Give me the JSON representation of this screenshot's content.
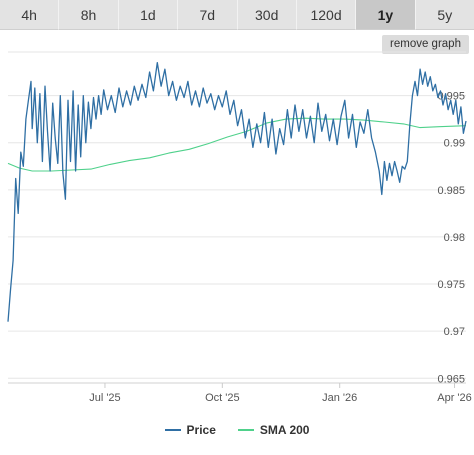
{
  "tabs": [
    {
      "label": "4h",
      "active": false
    },
    {
      "label": "8h",
      "active": false
    },
    {
      "label": "1d",
      "active": false
    },
    {
      "label": "7d",
      "active": false
    },
    {
      "label": "30d",
      "active": false
    },
    {
      "label": "120d",
      "active": false
    },
    {
      "label": "1y",
      "active": true
    },
    {
      "label": "5y",
      "active": false
    }
  ],
  "remove_graph_label": "remove graph",
  "legend": [
    {
      "label": "Price",
      "color": "#2f6fa4"
    },
    {
      "label": "SMA 200",
      "color": "#4fd18b"
    }
  ],
  "chart_data": {
    "type": "line",
    "x_tick_labels": [
      "Jul '25",
      "Oct '25",
      "Jan '26",
      "Apr '26"
    ],
    "x_tick_dates": [
      "2025-07-01",
      "2025-10-01",
      "2026-01-01",
      "2026-04-01"
    ],
    "x_range": [
      "2025-04-16",
      "2026-04-10"
    ],
    "y_ticks": [
      0.965,
      0.97,
      0.975,
      0.98,
      0.985,
      0.99,
      0.995
    ],
    "y_tick_labels": [
      "0.965",
      "0.97",
      "0.975",
      "0.98",
      "0.985",
      "0.99",
      "0.995"
    ],
    "ylim": [
      0.9645,
      0.9992
    ],
    "grid": "horizontal",
    "legend_position": "bottom-center",
    "series": [
      {
        "name": "Price",
        "color": "#2f6fa4",
        "points": [
          [
            "2025-04-16",
            0.971
          ],
          [
            "2025-04-18",
            0.9745
          ],
          [
            "2025-04-20",
            0.9775
          ],
          [
            "2025-04-22",
            0.9862
          ],
          [
            "2025-04-24",
            0.9825
          ],
          [
            "2025-04-26",
            0.989
          ],
          [
            "2025-04-28",
            0.9875
          ],
          [
            "2025-04-30",
            0.9925
          ],
          [
            "2025-05-02",
            0.9945
          ],
          [
            "2025-05-04",
            0.9965
          ],
          [
            "2025-05-05",
            0.9915
          ],
          [
            "2025-05-07",
            0.9958
          ],
          [
            "2025-05-09",
            0.99
          ],
          [
            "2025-05-11",
            0.9952
          ],
          [
            "2025-05-13",
            0.988
          ],
          [
            "2025-05-15",
            0.996
          ],
          [
            "2025-05-17",
            0.9912
          ],
          [
            "2025-05-19",
            0.987
          ],
          [
            "2025-05-21",
            0.9942
          ],
          [
            "2025-05-23",
            0.9905
          ],
          [
            "2025-05-25",
            0.9878
          ],
          [
            "2025-05-27",
            0.995
          ],
          [
            "2025-05-29",
            0.9868
          ],
          [
            "2025-05-31",
            0.984
          ],
          [
            "2025-06-02",
            0.9945
          ],
          [
            "2025-06-04",
            0.988
          ],
          [
            "2025-06-06",
            0.9955
          ],
          [
            "2025-06-08",
            0.987
          ],
          [
            "2025-06-10",
            0.994
          ],
          [
            "2025-06-12",
            0.9885
          ],
          [
            "2025-06-14",
            0.995
          ],
          [
            "2025-06-16",
            0.99
          ],
          [
            "2025-06-18",
            0.9943
          ],
          [
            "2025-06-20",
            0.9915
          ],
          [
            "2025-06-22",
            0.9948
          ],
          [
            "2025-06-24",
            0.9925
          ],
          [
            "2025-06-26",
            0.995
          ],
          [
            "2025-06-28",
            0.993
          ],
          [
            "2025-06-30",
            0.9956
          ],
          [
            "2025-07-03",
            0.9935
          ],
          [
            "2025-07-06",
            0.995
          ],
          [
            "2025-07-09",
            0.9932
          ],
          [
            "2025-07-12",
            0.9958
          ],
          [
            "2025-07-15",
            0.9938
          ],
          [
            "2025-07-18",
            0.9955
          ],
          [
            "2025-07-21",
            0.994
          ],
          [
            "2025-07-24",
            0.996
          ],
          [
            "2025-07-27",
            0.9945
          ],
          [
            "2025-07-30",
            0.9962
          ],
          [
            "2025-08-02",
            0.9948
          ],
          [
            "2025-08-05",
            0.9975
          ],
          [
            "2025-08-08",
            0.9955
          ],
          [
            "2025-08-11",
            0.9985
          ],
          [
            "2025-08-14",
            0.996
          ],
          [
            "2025-08-17",
            0.9978
          ],
          [
            "2025-08-20",
            0.995
          ],
          [
            "2025-08-23",
            0.9965
          ],
          [
            "2025-08-26",
            0.9945
          ],
          [
            "2025-08-29",
            0.996
          ],
          [
            "2025-09-01",
            0.9948
          ],
          [
            "2025-09-04",
            0.9965
          ],
          [
            "2025-09-07",
            0.994
          ],
          [
            "2025-09-10",
            0.9955
          ],
          [
            "2025-09-13",
            0.9938
          ],
          [
            "2025-09-16",
            0.9958
          ],
          [
            "2025-09-19",
            0.9942
          ],
          [
            "2025-09-22",
            0.9952
          ],
          [
            "2025-09-25",
            0.9935
          ],
          [
            "2025-09-28",
            0.995
          ],
          [
            "2025-10-01",
            0.9938
          ],
          [
            "2025-10-04",
            0.9955
          ],
          [
            "2025-10-07",
            0.993
          ],
          [
            "2025-10-10",
            0.9945
          ],
          [
            "2025-10-13",
            0.9918
          ],
          [
            "2025-10-16",
            0.9935
          ],
          [
            "2025-10-19",
            0.9905
          ],
          [
            "2025-10-22",
            0.9925
          ],
          [
            "2025-10-25",
            0.9895
          ],
          [
            "2025-10-28",
            0.992
          ],
          [
            "2025-10-31",
            0.99
          ],
          [
            "2025-11-03",
            0.9932
          ],
          [
            "2025-11-06",
            0.9895
          ],
          [
            "2025-11-09",
            0.9925
          ],
          [
            "2025-11-12",
            0.9888
          ],
          [
            "2025-11-15",
            0.9915
          ],
          [
            "2025-11-18",
            0.9898
          ],
          [
            "2025-11-21",
            0.9935
          ],
          [
            "2025-11-24",
            0.9905
          ],
          [
            "2025-11-27",
            0.994
          ],
          [
            "2025-11-30",
            0.9912
          ],
          [
            "2025-12-03",
            0.9935
          ],
          [
            "2025-12-06",
            0.9905
          ],
          [
            "2025-12-09",
            0.9928
          ],
          [
            "2025-12-12",
            0.99
          ],
          [
            "2025-12-15",
            0.9942
          ],
          [
            "2025-12-18",
            0.9912
          ],
          [
            "2025-12-21",
            0.993
          ],
          [
            "2025-12-24",
            0.9902
          ],
          [
            "2025-12-27",
            0.9925
          ],
          [
            "2025-12-30",
            0.9898
          ],
          [
            "2026-01-02",
            0.9928
          ],
          [
            "2026-01-05",
            0.9945
          ],
          [
            "2026-01-08",
            0.9905
          ],
          [
            "2026-01-11",
            0.993
          ],
          [
            "2026-01-14",
            0.9895
          ],
          [
            "2026-01-17",
            0.9922
          ],
          [
            "2026-01-20",
            0.991
          ],
          [
            "2026-01-23",
            0.9935
          ],
          [
            "2026-01-26",
            0.9905
          ],
          [
            "2026-01-29",
            0.989
          ],
          [
            "2026-02-01",
            0.987
          ],
          [
            "2026-02-03",
            0.9845
          ],
          [
            "2026-02-05",
            0.988
          ],
          [
            "2026-02-07",
            0.986
          ],
          [
            "2026-02-09",
            0.9878
          ],
          [
            "2026-02-11",
            0.9865
          ],
          [
            "2026-02-13",
            0.988
          ],
          [
            "2026-02-15",
            0.987
          ],
          [
            "2026-02-17",
            0.9858
          ],
          [
            "2026-02-19",
            0.9875
          ],
          [
            "2026-02-21",
            0.9872
          ],
          [
            "2026-02-23",
            0.988
          ],
          [
            "2026-02-25",
            0.992
          ],
          [
            "2026-02-27",
            0.995
          ],
          [
            "2026-03-01",
            0.9965
          ],
          [
            "2026-03-03",
            0.995
          ],
          [
            "2026-03-05",
            0.9978
          ],
          [
            "2026-03-07",
            0.9962
          ],
          [
            "2026-03-09",
            0.9975
          ],
          [
            "2026-03-11",
            0.996
          ],
          [
            "2026-03-13",
            0.997
          ],
          [
            "2026-03-15",
            0.9955
          ],
          [
            "2026-03-17",
            0.9962
          ],
          [
            "2026-03-19",
            0.9948
          ],
          [
            "2026-03-21",
            0.9955
          ],
          [
            "2026-03-23",
            0.994
          ],
          [
            "2026-03-25",
            0.9952
          ],
          [
            "2026-03-27",
            0.9935
          ],
          [
            "2026-03-29",
            0.9945
          ],
          [
            "2026-03-31",
            0.993
          ],
          [
            "2026-04-02",
            0.9945
          ],
          [
            "2026-04-04",
            0.992
          ],
          [
            "2026-04-06",
            0.9938
          ],
          [
            "2026-04-08",
            0.991
          ],
          [
            "2026-04-10",
            0.9923
          ]
        ]
      },
      {
        "name": "SMA 200",
        "color": "#4fd18b",
        "points": [
          [
            "2025-04-16",
            0.9878
          ],
          [
            "2025-04-25",
            0.9873
          ],
          [
            "2025-05-05",
            0.987
          ],
          [
            "2025-05-20",
            0.987
          ],
          [
            "2025-06-05",
            0.9871
          ],
          [
            "2025-06-20",
            0.9872
          ],
          [
            "2025-07-05",
            0.9877
          ],
          [
            "2025-07-20",
            0.9881
          ],
          [
            "2025-08-05",
            0.9884
          ],
          [
            "2025-08-20",
            0.9889
          ],
          [
            "2025-09-05",
            0.9893
          ],
          [
            "2025-09-20",
            0.9899
          ],
          [
            "2025-10-05",
            0.9906
          ],
          [
            "2025-10-20",
            0.9912
          ],
          [
            "2025-11-05",
            0.9921
          ],
          [
            "2025-11-20",
            0.9925
          ],
          [
            "2025-12-05",
            0.9926
          ],
          [
            "2025-12-20",
            0.9925
          ],
          [
            "2026-01-05",
            0.9925
          ],
          [
            "2026-01-20",
            0.9924
          ],
          [
            "2026-02-05",
            0.9922
          ],
          [
            "2026-02-20",
            0.992
          ],
          [
            "2026-03-05",
            0.9916
          ],
          [
            "2026-03-20",
            0.9917
          ],
          [
            "2026-04-10",
            0.9918
          ]
        ]
      }
    ]
  }
}
